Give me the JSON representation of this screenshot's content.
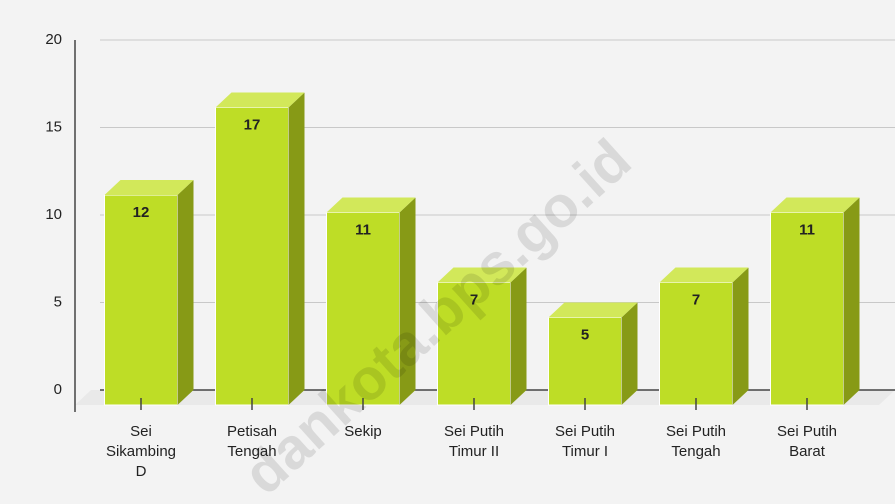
{
  "chart_data": {
    "type": "bar3d",
    "categories": [
      "Sei Sikambing D",
      "Petisah Tengah",
      "Sekip",
      "Sei Putih Timur II",
      "Sei Putih Timur I",
      "Sei Putih Tengah",
      "Sei Putih Barat"
    ],
    "values": [
      12,
      17,
      11,
      7,
      5,
      7,
      11
    ],
    "color": "#bedd26",
    "ylim": [
      0,
      20
    ],
    "yticks": [
      0,
      5,
      10,
      15,
      20
    ],
    "grid": true,
    "watermark": "dankota.bps.go.id"
  }
}
